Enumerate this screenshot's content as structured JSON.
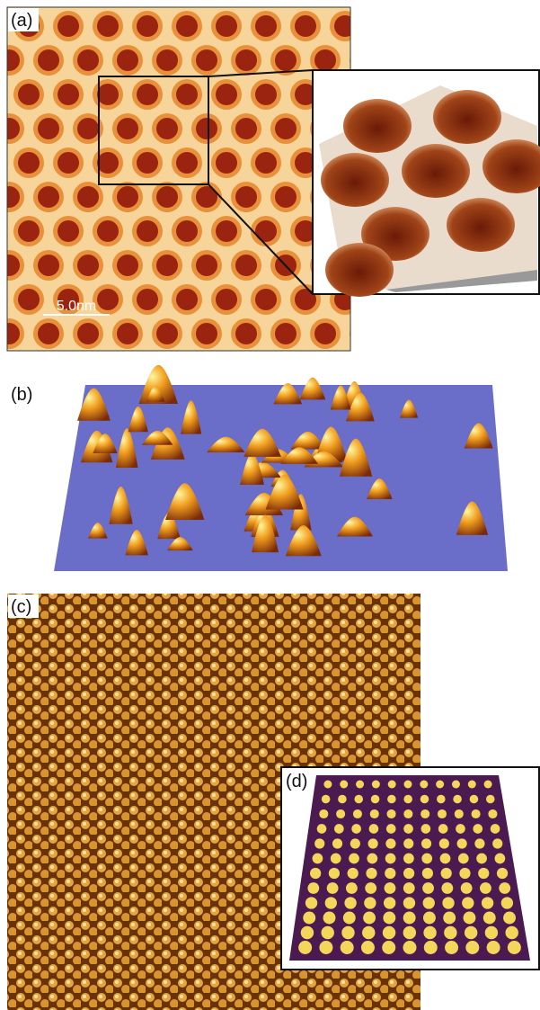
{
  "panels": [
    {
      "label": "(a)",
      "scale_bar": "5.0nm"
    },
    {
      "label": "(b)"
    },
    {
      "label": "(c)"
    },
    {
      "label": "(d)"
    }
  ]
}
